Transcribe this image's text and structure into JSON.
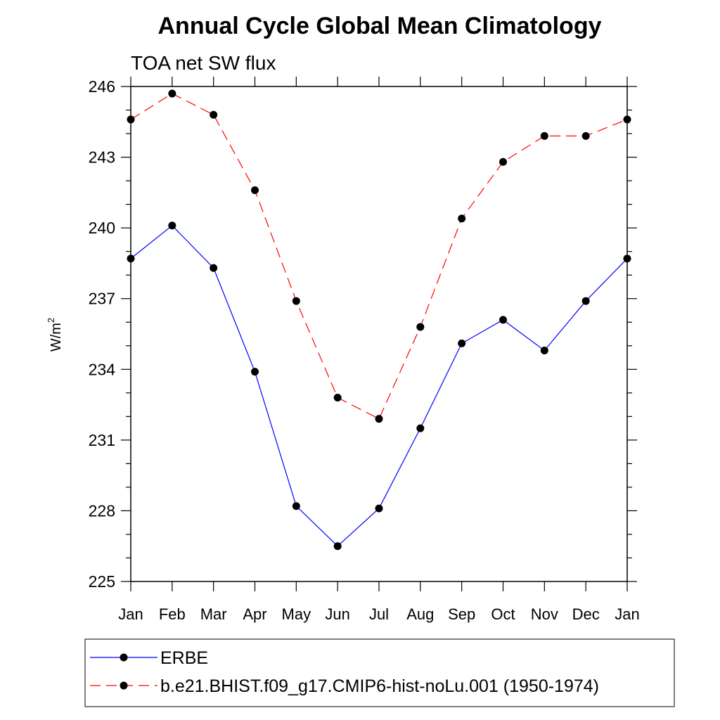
{
  "chart_data": {
    "type": "line",
    "title": "Annual Cycle Global Mean Climatology",
    "subtitle": "TOA net SW flux",
    "ylabel": "W/m",
    "ylabel_sup": "2",
    "xlabel": "",
    "categories": [
      "Jan",
      "Feb",
      "Mar",
      "Apr",
      "May",
      "Jun",
      "Jul",
      "Aug",
      "Sep",
      "Oct",
      "Nov",
      "Dec",
      "Jan"
    ],
    "ylim": [
      225,
      246
    ],
    "yticks": [
      225,
      228,
      231,
      234,
      237,
      240,
      243,
      246
    ],
    "grid": false,
    "legend_position": "bottom",
    "series": [
      {
        "name": "ERBE",
        "color": "#0000ff",
        "line_style": "solid",
        "marker": "filled-circle",
        "values": [
          238.7,
          240.1,
          238.3,
          233.9,
          228.2,
          226.5,
          228.1,
          231.5,
          235.1,
          236.1,
          234.8,
          236.9,
          238.7
        ]
      },
      {
        "name": "b.e21.BHIST.f09_g17.CMIP6-hist-noLu.001 (1950-1974)",
        "color": "#ff0000",
        "line_style": "dashed",
        "marker": "filled-circle",
        "values": [
          244.6,
          245.7,
          244.8,
          241.6,
          236.9,
          232.8,
          231.9,
          235.8,
          240.4,
          242.8,
          243.9,
          243.9,
          244.6
        ]
      }
    ]
  }
}
